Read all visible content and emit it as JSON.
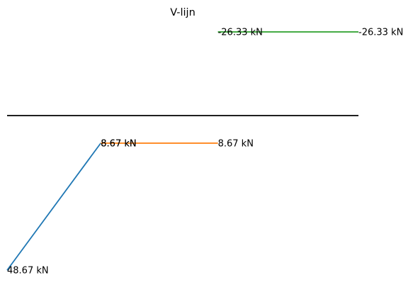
{
  "chart_data": {
    "type": "line",
    "title": "V-lijn",
    "xlabel": "",
    "ylabel": "",
    "grid": false,
    "axes_visible": false,
    "xlim": [
      0,
      15
    ],
    "ylim": [
      -30,
      60
    ],
    "baseline": {
      "x": [
        0,
        15
      ],
      "y": 0,
      "color": "#000000"
    },
    "series": [
      {
        "x": [
          0,
          4
        ],
        "y": [
          48.67,
          8.67
        ],
        "color": "#1f77b4"
      },
      {
        "x": [
          4,
          9
        ],
        "y": [
          8.67,
          8.67
        ],
        "color": "#ff7f0e"
      },
      {
        "x": [
          9,
          15
        ],
        "y": [
          -26.33,
          -26.33
        ],
        "color": "#2ca02c"
      }
    ],
    "annotations": [
      {
        "x": 0,
        "y": 48.67,
        "text": "48.67 kN"
      },
      {
        "x": 4,
        "y": 8.67,
        "text": "8.67 kN"
      },
      {
        "x": 4,
        "y": 8.67,
        "text": "8.67 kN"
      },
      {
        "x": 9,
        "y": 8.67,
        "text": "8.67 kN"
      },
      {
        "x": 9,
        "y": -26.33,
        "text": "-26.33 kN"
      },
      {
        "x": 15,
        "y": -26.33,
        "text": "-26.33 kN"
      }
    ]
  }
}
